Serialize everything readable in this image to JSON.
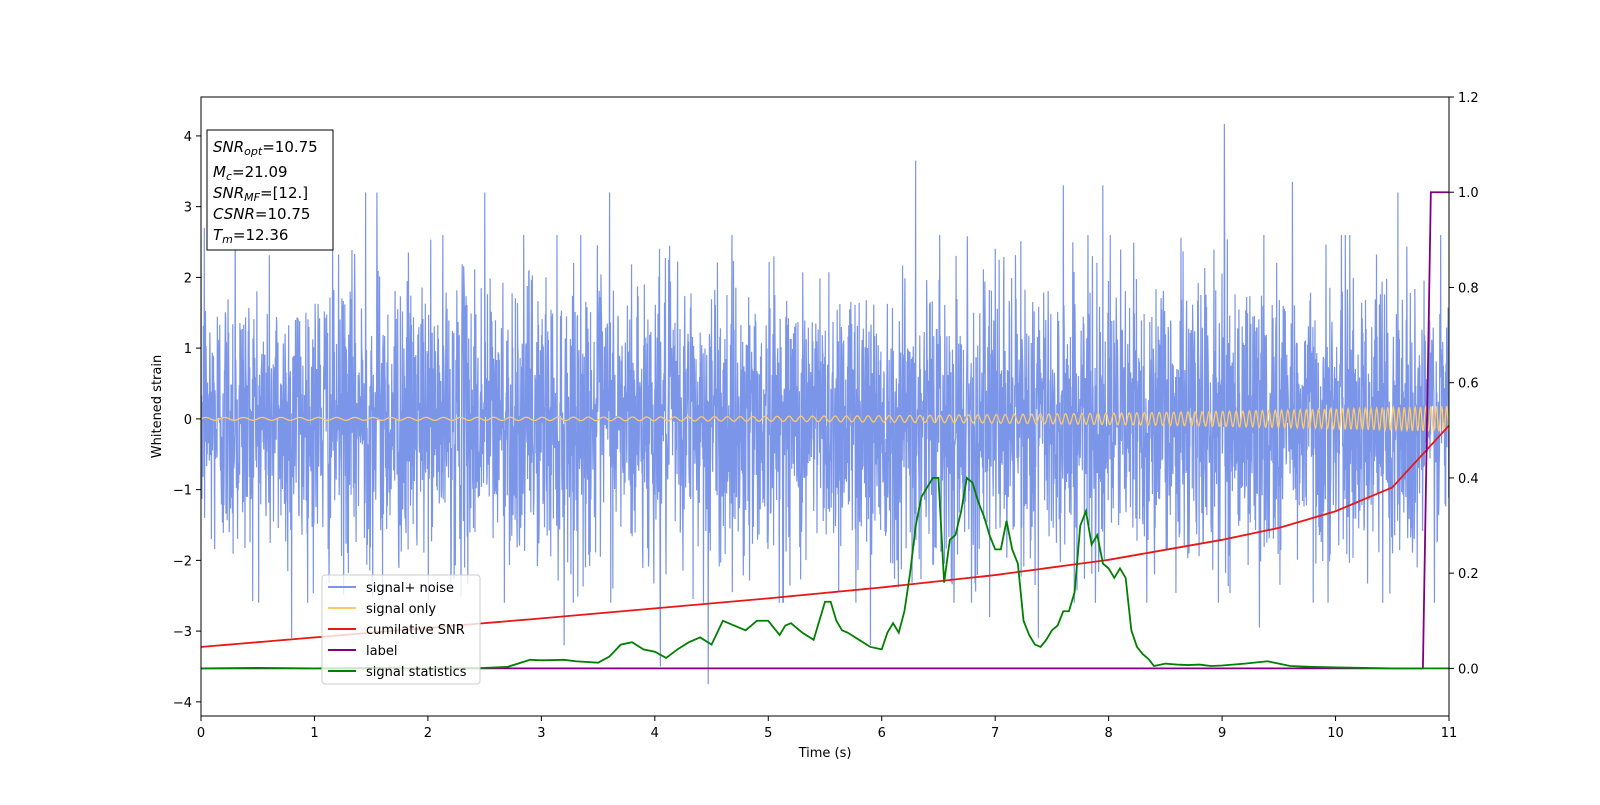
{
  "chart_data": {
    "type": "line",
    "xlabel": "Time (s)",
    "ylabel": "Whitened strain",
    "xlim": [
      0,
      11
    ],
    "ylim": [
      -4.2,
      4.55
    ],
    "y2lim": [
      -0.1,
      1.2
    ],
    "grid": false,
    "legend_position": "lower-left",
    "x_ticks": [
      "0",
      "1",
      "2",
      "3",
      "4",
      "5",
      "6",
      "7",
      "8",
      "9",
      "10",
      "11"
    ],
    "y_ticks": [
      "4",
      "3",
      "2",
      "1",
      "0",
      "−1",
      "−2",
      "−3",
      "−4"
    ],
    "y2_ticks": [
      "1.2",
      "1.0",
      "0.8",
      "0.6",
      "0.4",
      "0.2",
      "0.0"
    ],
    "annotation": [
      {
        "base": "SNR",
        "sub": "opt",
        "value": "=10.75"
      },
      {
        "base": "M",
        "sub": "c",
        "value": "=21.09"
      },
      {
        "base": "SNR",
        "sub": "MF",
        "value": "=[12.]"
      },
      {
        "base": "CSNR",
        "sub": "",
        "value": "=10.75"
      },
      {
        "base": "T",
        "sub": "m",
        "value": "=12.36"
      }
    ],
    "series": [
      {
        "name": "signal+ noise",
        "color": "#7b95e8",
        "axis": "left",
        "kind": "noise",
        "sigma": 1.0,
        "spikes": [
          [
            0.03,
            2.7
          ],
          [
            0.3,
            2.9
          ],
          [
            0.8,
            -3.1
          ],
          [
            1.45,
            3.2
          ],
          [
            1.55,
            3.2
          ],
          [
            2.5,
            3.2
          ],
          [
            3.2,
            -3.2
          ],
          [
            3.6,
            3.2
          ],
          [
            4.05,
            -3.5
          ],
          [
            4.47,
            -3.75
          ],
          [
            5.9,
            -3.2
          ],
          [
            6.3,
            3.65
          ],
          [
            6.95,
            -2.8
          ],
          [
            7.38,
            -3.1
          ],
          [
            7.6,
            3.3
          ],
          [
            7.95,
            3.3
          ],
          [
            9.02,
            4.17
          ],
          [
            9.33,
            -2.95
          ],
          [
            9.62,
            3.35
          ],
          [
            10.55,
            3.2
          ],
          [
            10.72,
            -2.1
          ]
        ]
      },
      {
        "name": "signal only",
        "color": "#ffc966",
        "axis": "left",
        "kind": "chirp",
        "amp_start": 0.02,
        "amp_end": 0.18,
        "freq_start_hz": 6,
        "freq_end_hz": 22
      },
      {
        "name": "cumilative SNR",
        "color": "#e81818",
        "axis": "right",
        "x": [
          0,
          1,
          2,
          3,
          4,
          5,
          6,
          7,
          8,
          9,
          9.5,
          10,
          10.5,
          11
        ],
        "values": [
          0.045,
          0.065,
          0.085,
          0.105,
          0.126,
          0.147,
          0.17,
          0.196,
          0.228,
          0.27,
          0.295,
          0.33,
          0.38,
          0.51
        ]
      },
      {
        "name": "label",
        "color": "#800080",
        "axis": "right",
        "x": [
          0,
          10.77,
          10.84,
          11
        ],
        "values": [
          0.0,
          0.0,
          1.0,
          1.0
        ]
      },
      {
        "name": "signal statistics",
        "color": "#008000",
        "axis": "right",
        "x": [
          0,
          0.5,
          1,
          1.5,
          2,
          2.5,
          2.7,
          2.9,
          3.0,
          3.2,
          3.3,
          3.5,
          3.6,
          3.7,
          3.8,
          3.9,
          4.0,
          4.1,
          4.2,
          4.3,
          4.4,
          4.5,
          4.6,
          4.7,
          4.8,
          4.9,
          5.0,
          5.1,
          5.15,
          5.2,
          5.3,
          5.4,
          5.5,
          5.55,
          5.6,
          5.65,
          5.7,
          5.8,
          5.9,
          6.0,
          6.05,
          6.1,
          6.15,
          6.2,
          6.25,
          6.3,
          6.35,
          6.4,
          6.45,
          6.5,
          6.55,
          6.6,
          6.65,
          6.7,
          6.75,
          6.8,
          6.85,
          6.9,
          6.95,
          7.0,
          7.05,
          7.1,
          7.15,
          7.2,
          7.25,
          7.3,
          7.35,
          7.4,
          7.45,
          7.5,
          7.55,
          7.6,
          7.65,
          7.7,
          7.75,
          7.8,
          7.85,
          7.9,
          7.95,
          8.0,
          8.05,
          8.1,
          8.15,
          8.2,
          8.25,
          8.3,
          8.35,
          8.4,
          8.5,
          8.6,
          8.7,
          8.8,
          8.9,
          9.0,
          9.2,
          9.4,
          9.5,
          9.6,
          9.8,
          10.0,
          10.5,
          11.0
        ],
        "values": [
          0.0,
          0.001,
          0.0,
          0.001,
          0.0,
          0.001,
          0.003,
          0.018,
          0.017,
          0.018,
          0.015,
          0.012,
          0.025,
          0.05,
          0.055,
          0.04,
          0.035,
          0.022,
          0.04,
          0.055,
          0.065,
          0.05,
          0.1,
          0.09,
          0.08,
          0.1,
          0.1,
          0.07,
          0.09,
          0.095,
          0.075,
          0.06,
          0.14,
          0.14,
          0.1,
          0.08,
          0.075,
          0.06,
          0.045,
          0.04,
          0.075,
          0.095,
          0.075,
          0.12,
          0.2,
          0.3,
          0.36,
          0.38,
          0.4,
          0.4,
          0.18,
          0.27,
          0.28,
          0.33,
          0.4,
          0.39,
          0.35,
          0.32,
          0.28,
          0.25,
          0.25,
          0.31,
          0.25,
          0.22,
          0.1,
          0.07,
          0.05,
          0.045,
          0.06,
          0.08,
          0.09,
          0.12,
          0.12,
          0.16,
          0.3,
          0.33,
          0.26,
          0.28,
          0.22,
          0.21,
          0.19,
          0.21,
          0.19,
          0.08,
          0.045,
          0.03,
          0.02,
          0.005,
          0.01,
          0.008,
          0.007,
          0.008,
          0.005,
          0.006,
          0.01,
          0.015,
          0.01,
          0.005,
          0.003,
          0.002,
          0.0,
          0.0
        ]
      }
    ]
  }
}
